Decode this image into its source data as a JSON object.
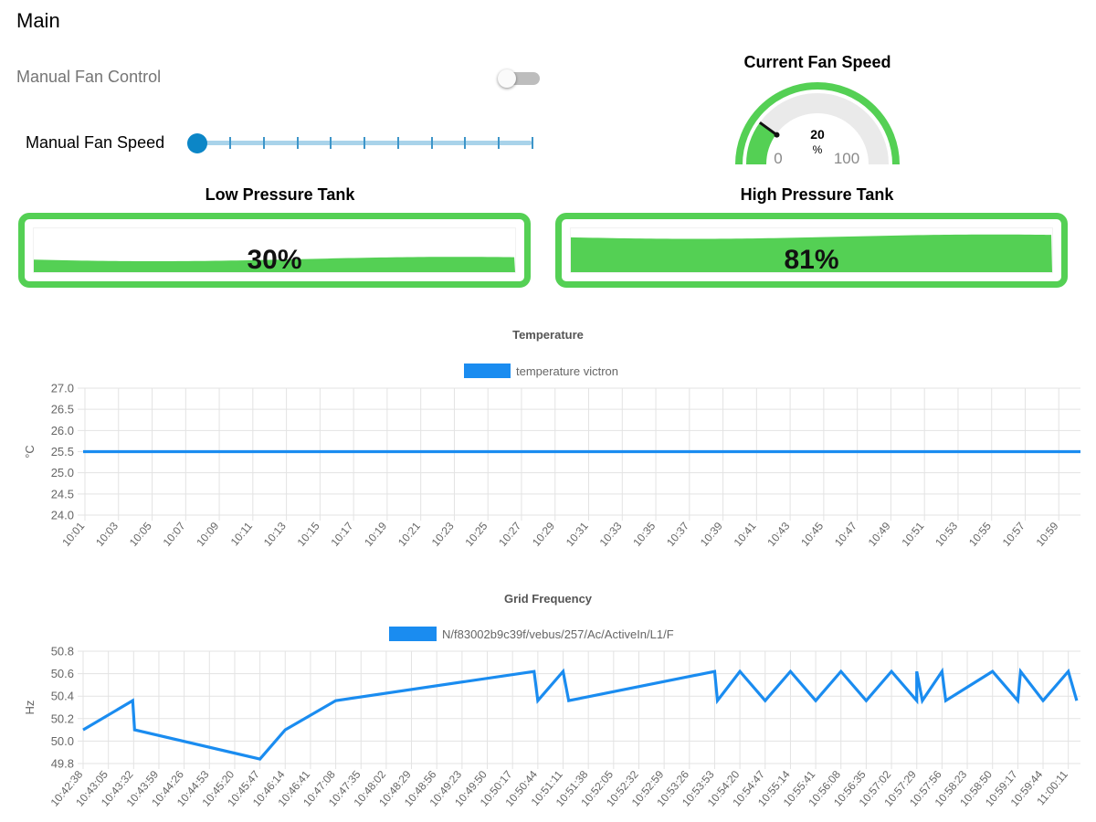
{
  "page": {
    "title": "Main"
  },
  "manual_fan_control": {
    "label": "Manual Fan Control",
    "enabled": false
  },
  "manual_fan_speed": {
    "label": "Manual Fan Speed",
    "value_fraction": 0.0,
    "tick_count": 10
  },
  "fan_gauge": {
    "title": "Current Fan Speed",
    "value": "20",
    "unit": "%",
    "min": "0",
    "max": "100",
    "fill_fraction": 0.2,
    "colors": {
      "ring": "#54d054",
      "arc_fill": "#54d054",
      "arc_bg": "#eaeaea",
      "needle": "#111111"
    }
  },
  "tanks": [
    {
      "title": "Low Pressure Tank",
      "value": "30%",
      "level_fraction": 0.3,
      "color": "#54d054"
    },
    {
      "title": "High Pressure Tank",
      "value": "81%",
      "level_fraction": 0.81,
      "color": "#54d054"
    }
  ],
  "chart_data": [
    {
      "type": "line",
      "title": "Temperature",
      "ylabel": "°C",
      "ylim": [
        24.0,
        27.0
      ],
      "yticks": [
        "27.0",
        "26.5",
        "26.0",
        "25.5",
        "25.0",
        "24.5",
        "24.0"
      ],
      "categories": [
        "10:01",
        "10:03",
        "10:05",
        "10:07",
        "10:09",
        "10:11",
        "10:13",
        "10:15",
        "10:17",
        "10:19",
        "10:21",
        "10:23",
        "10:25",
        "10:27",
        "10:29",
        "10:31",
        "10:33",
        "10:35",
        "10:37",
        "10:39",
        "10:41",
        "10:43",
        "10:45",
        "10:47",
        "10:49",
        "10:51",
        "10:53",
        "10:55",
        "10:57",
        "10:59"
      ],
      "series": [
        {
          "name": "temperature victron",
          "color": "#1a8cf0",
          "values": [
            25.5,
            25.5,
            25.5,
            25.5,
            25.5,
            25.5,
            25.5,
            25.5,
            25.5,
            25.5,
            25.5,
            25.5,
            25.5,
            25.5,
            25.5,
            25.5,
            25.5,
            25.5,
            25.5,
            25.5,
            25.5,
            25.5,
            25.5,
            25.5,
            25.5,
            25.5,
            25.5,
            25.5,
            25.5,
            25.5
          ]
        }
      ],
      "grid": true,
      "legend": "top-center"
    },
    {
      "type": "line",
      "title": "Grid Frequency",
      "ylabel": "Hz",
      "ylim": [
        49.8,
        50.8
      ],
      "yticks": [
        "50.8",
        "50.6",
        "50.4",
        "50.2",
        "50.0",
        "49.8"
      ],
      "categories": [
        "10:42:38",
        "10:43:05",
        "10:43:32",
        "10:43:59",
        "10:44:26",
        "10:44:53",
        "10:45:20",
        "10:45:47",
        "10:46:14",
        "10:46:41",
        "10:47:08",
        "10:47:35",
        "10:48:02",
        "10:48:29",
        "10:48:56",
        "10:49:23",
        "10:49:50",
        "10:50:17",
        "10:50:44",
        "10:51:11",
        "10:51:38",
        "10:52:05",
        "10:52:32",
        "10:52:59",
        "10:53:26",
        "10:53:53",
        "10:54:20",
        "10:54:47",
        "10:55:14",
        "10:55:41",
        "10:56:08",
        "10:56:35",
        "10:57:02",
        "10:57:29",
        "10:57:56",
        "10:58:23",
        "10:58:50",
        "10:59:17",
        "10:59:44",
        "11:00:11"
      ],
      "series": [
        {
          "name": "N/f83002b9c39f/vebus/257/Ac/ActiveIn/L1/F",
          "color": "#1a8cf0",
          "points": [
            {
              "x": "10:42:38",
              "y": 50.1
            },
            {
              "x": "10:43:31",
              "y": 50.36
            },
            {
              "x": "10:43:33",
              "y": 50.1
            },
            {
              "x": "10:45:47",
              "y": 49.84
            },
            {
              "x": "10:46:14",
              "y": 50.1
            },
            {
              "x": "10:47:08",
              "y": 50.36
            },
            {
              "x": "10:50:40",
              "y": 50.62
            },
            {
              "x": "10:50:44",
              "y": 50.36
            },
            {
              "x": "10:51:11",
              "y": 50.62
            },
            {
              "x": "10:51:17",
              "y": 50.36
            },
            {
              "x": "10:53:53",
              "y": 50.62
            },
            {
              "x": "10:53:56",
              "y": 50.36
            },
            {
              "x": "10:54:20",
              "y": 50.62
            },
            {
              "x": "10:54:47",
              "y": 50.36
            },
            {
              "x": "10:55:14",
              "y": 50.62
            },
            {
              "x": "10:55:41",
              "y": 50.36
            },
            {
              "x": "10:56:08",
              "y": 50.62
            },
            {
              "x": "10:56:35",
              "y": 50.36
            },
            {
              "x": "10:57:02",
              "y": 50.62
            },
            {
              "x": "10:57:29",
              "y": 50.36
            },
            {
              "x": "10:57:29",
              "y": 50.62
            },
            {
              "x": "10:57:35",
              "y": 50.36
            },
            {
              "x": "10:57:56",
              "y": 50.62
            },
            {
              "x": "10:58:00",
              "y": 50.36
            },
            {
              "x": "10:58:50",
              "y": 50.62
            },
            {
              "x": "10:59:17",
              "y": 50.36
            },
            {
              "x": "10:59:20",
              "y": 50.62
            },
            {
              "x": "10:59:44",
              "y": 50.36
            },
            {
              "x": "11:00:11",
              "y": 50.62
            },
            {
              "x": "11:00:20",
              "y": 50.36
            }
          ]
        }
      ],
      "grid": true,
      "legend": "top-center"
    }
  ]
}
